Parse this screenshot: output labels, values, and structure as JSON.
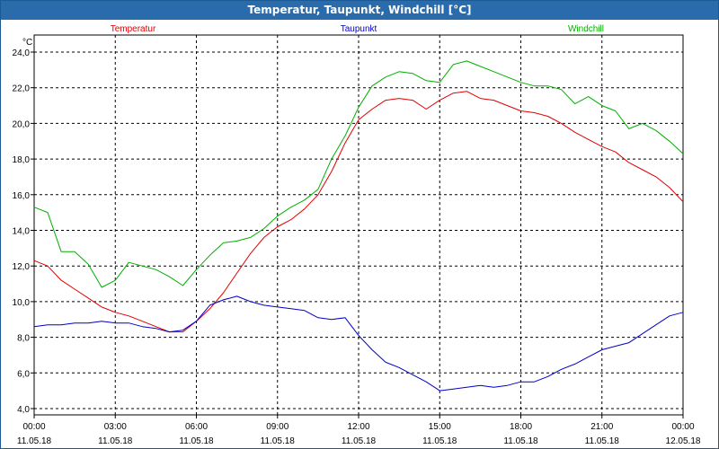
{
  "window": {
    "title": "Temperatur, Taupunkt, Windchill [°C]"
  },
  "colors": {
    "titlebar": "#2a6bab",
    "temperatur": "#e00000",
    "taupunkt": "#0000c8",
    "windchill": "#00b000",
    "grid": "#000000"
  },
  "chart_data": {
    "type": "line",
    "title": "Temperatur, Taupunkt, Windchill [°C]",
    "ylabel": "°C",
    "xlabel": "",
    "ylim": [
      4.0,
      24.0
    ],
    "xlim": [
      0,
      24
    ],
    "grid": true,
    "legend_placement": "top",
    "yticks": [
      "4,0",
      "6,0",
      "8,0",
      "10,0",
      "12,0",
      "14,0",
      "16,0",
      "18,0",
      "20,0",
      "22,0",
      "24,0"
    ],
    "ytick_values": [
      4,
      6,
      8,
      10,
      12,
      14,
      16,
      18,
      20,
      22,
      24
    ],
    "xticks": [
      {
        "time": "00:00",
        "date": "11.05.18"
      },
      {
        "time": "03:00",
        "date": "11.05.18"
      },
      {
        "time": "06:00",
        "date": "11.05.18"
      },
      {
        "time": "09:00",
        "date": "11.05.18"
      },
      {
        "time": "12:00",
        "date": "11.05.18"
      },
      {
        "time": "15:00",
        "date": "11.05.18"
      },
      {
        "time": "18:00",
        "date": "11.05.18"
      },
      {
        "time": "21:00",
        "date": "11.05.18"
      },
      {
        "time": "00:00",
        "date": "12.05.18"
      }
    ],
    "xtick_values": [
      0,
      3,
      6,
      9,
      12,
      15,
      18,
      21,
      24
    ],
    "series": [
      {
        "name": "Temperatur",
        "color": "#e00000",
        "x": [
          0,
          0.5,
          1,
          1.5,
          2,
          2.5,
          3,
          3.5,
          4,
          4.5,
          5,
          5.5,
          6,
          6.5,
          7,
          7.5,
          8,
          8.5,
          9,
          9.5,
          10,
          10.5,
          11,
          11.5,
          12,
          12.5,
          13,
          13.5,
          14,
          14.5,
          15,
          15.5,
          16,
          16.5,
          17,
          17.5,
          18,
          18.5,
          19,
          19.5,
          20,
          20.5,
          21,
          21.5,
          22,
          22.5,
          23,
          23.5,
          24
        ],
        "values": [
          12.3,
          12.0,
          11.2,
          10.7,
          10.2,
          9.7,
          9.4,
          9.2,
          8.9,
          8.6,
          8.3,
          8.3,
          8.9,
          9.6,
          10.5,
          11.6,
          12.7,
          13.6,
          14.2,
          14.6,
          15.2,
          16.0,
          17.3,
          18.9,
          20.2,
          20.8,
          21.3,
          21.4,
          21.3,
          20.8,
          21.3,
          21.7,
          21.8,
          21.4,
          21.3,
          21.0,
          20.7,
          20.6,
          20.4,
          20.0,
          19.5,
          19.1,
          18.7,
          18.4,
          17.8,
          17.4,
          17.0,
          16.4,
          15.6
        ]
      },
      {
        "name": "Taupunkt",
        "color": "#0000c8",
        "x": [
          0,
          0.5,
          1,
          1.5,
          2,
          2.5,
          3,
          3.5,
          4,
          4.5,
          5,
          5.5,
          6,
          6.5,
          7,
          7.5,
          8,
          8.5,
          9,
          9.5,
          10,
          10.5,
          11,
          11.5,
          12,
          12.5,
          13,
          13.5,
          14,
          14.5,
          15,
          15.5,
          16,
          16.5,
          17,
          17.5,
          18,
          18.5,
          19,
          19.5,
          20,
          20.5,
          21,
          21.5,
          22,
          22.5,
          23,
          23.5,
          24
        ],
        "values": [
          8.6,
          8.7,
          8.7,
          8.8,
          8.8,
          8.9,
          8.8,
          8.8,
          8.6,
          8.5,
          8.3,
          8.4,
          8.9,
          9.8,
          10.1,
          10.3,
          10.0,
          9.8,
          9.7,
          9.6,
          9.5,
          9.1,
          9.0,
          9.1,
          8.1,
          7.3,
          6.6,
          6.3,
          5.9,
          5.5,
          5.0,
          5.1,
          5.2,
          5.3,
          5.2,
          5.3,
          5.5,
          5.5,
          5.8,
          6.2,
          6.5,
          6.9,
          7.3,
          7.5,
          7.7,
          8.2,
          8.7,
          9.2,
          9.4
        ]
      },
      {
        "name": "Windchill",
        "color": "#00b000",
        "x": [
          0,
          0.5,
          1,
          1.5,
          2,
          2.5,
          3,
          3.5,
          4,
          4.5,
          5,
          5.5,
          6,
          6.5,
          7,
          7.5,
          8,
          8.5,
          9,
          9.5,
          10,
          10.5,
          11,
          11.5,
          12,
          12.5,
          13,
          13.5,
          14,
          14.5,
          15,
          15.5,
          16,
          16.5,
          17,
          17.5,
          18,
          18.5,
          19,
          19.5,
          20,
          20.5,
          21,
          21.5,
          22,
          22.5,
          23,
          23.5,
          24
        ],
        "values": [
          15.3,
          15.0,
          12.8,
          12.8,
          12.1,
          10.8,
          11.2,
          12.2,
          12.0,
          11.8,
          11.4,
          10.9,
          11.8,
          12.6,
          13.3,
          13.4,
          13.6,
          14.1,
          14.8,
          15.3,
          15.7,
          16.3,
          18.0,
          19.3,
          20.9,
          22.1,
          22.6,
          22.9,
          22.8,
          22.4,
          22.3,
          23.3,
          23.5,
          23.2,
          22.9,
          22.6,
          22.3,
          22.1,
          22.1,
          21.9,
          21.1,
          21.5,
          21.0,
          20.7,
          19.7,
          20.0,
          19.6,
          19.0,
          18.3
        ]
      }
    ]
  }
}
